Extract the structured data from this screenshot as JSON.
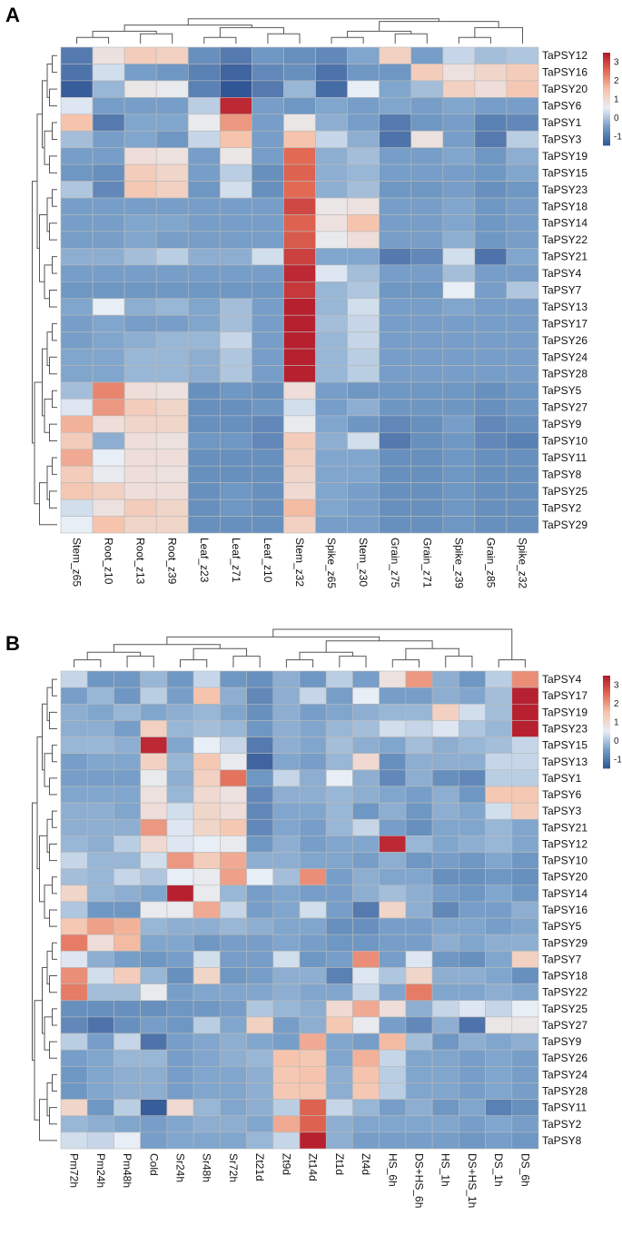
{
  "chart_data": [
    {
      "type": "heatmap",
      "panel": "A",
      "colorbar_ticks": [
        3,
        2,
        1,
        0,
        -1
      ],
      "colorbar_range": [
        -1.5,
        3.5
      ],
      "columns": [
        "Stem_z65",
        "Root_z10",
        "Root_z13",
        "Root_z39",
        "Leaf_z23",
        "Leaf_z71",
        "Leaf_z10",
        "Stem_z32",
        "Spike_z65",
        "Stem_z30",
        "Grain_z75",
        "Grain_z71",
        "Spike_z39",
        "Grain_z85",
        "Spike_z32"
      ],
      "rows": [
        "TaPSY12",
        "TaPSY16",
        "TaPSY20",
        "TaPSY6",
        "TaPSY1",
        "TaPSY3",
        "TaPSY19",
        "TaPSY15",
        "TaPSY23",
        "TaPSY18",
        "TaPSY14",
        "TaPSY22",
        "TaPSY21",
        "TaPSY4",
        "TaPSY7",
        "TaPSY13",
        "TaPSY17",
        "TaPSY26",
        "TaPSY24",
        "TaPSY28",
        "TaPSY5",
        "TaPSY27",
        "TaPSY9",
        "TaPSY10",
        "TaPSY11",
        "TaPSY8",
        "TaPSY25",
        "TaPSY2",
        "TaPSY29"
      ],
      "values": [
        [
          -1.0,
          0.8,
          1.3,
          1.2,
          -0.7,
          -1.0,
          -0.6,
          -0.7,
          -0.8,
          -0.4,
          1.2,
          -0.5,
          0.2,
          -0.1,
          0.0
        ],
        [
          -1.1,
          0.3,
          -0.5,
          -0.6,
          -0.9,
          -1.3,
          -0.8,
          -0.7,
          -1.1,
          -0.6,
          -0.6,
          1.3,
          0.8,
          1.1,
          1.3
        ],
        [
          -1.4,
          -0.2,
          0.7,
          0.6,
          -0.9,
          -1.5,
          -1.0,
          -0.2,
          -1.2,
          0.5,
          -0.4,
          -0.1,
          1.2,
          0.9,
          1.4
        ],
        [
          0.4,
          -0.5,
          -0.5,
          -0.5,
          0.1,
          3.3,
          -0.5,
          -0.6,
          -0.4,
          -0.5,
          -0.4,
          -0.5,
          -0.4,
          -0.5,
          -0.5
        ],
        [
          1.5,
          -1.0,
          -0.4,
          -0.4,
          0.6,
          2.0,
          -0.5,
          0.7,
          -0.3,
          -0.5,
          -1.0,
          -0.6,
          -0.5,
          -0.9,
          -0.8
        ],
        [
          -0.1,
          -0.5,
          -0.4,
          -0.6,
          0.2,
          1.5,
          -0.5,
          1.5,
          0.2,
          -0.3,
          -1.1,
          0.8,
          -0.5,
          -1.0,
          0.1
        ],
        [
          -0.5,
          -0.5,
          0.9,
          0.8,
          -0.5,
          0.7,
          -0.5,
          2.5,
          -0.3,
          -0.1,
          -0.5,
          -0.5,
          -0.4,
          -0.6,
          -0.3
        ],
        [
          -0.6,
          -0.7,
          1.3,
          1.1,
          -0.5,
          0.1,
          -0.7,
          2.6,
          -0.3,
          -0.2,
          -0.5,
          -0.5,
          -0.5,
          -0.6,
          -0.4
        ],
        [
          0.0,
          -0.8,
          1.4,
          1.2,
          -0.6,
          0.3,
          -0.7,
          2.5,
          -0.3,
          -0.1,
          -0.6,
          -0.6,
          -0.5,
          -0.7,
          -0.6
        ],
        [
          -0.5,
          -0.5,
          -0.5,
          -0.5,
          -0.5,
          -0.5,
          -0.5,
          2.9,
          0.7,
          0.8,
          -0.5,
          -0.5,
          -0.4,
          -0.6,
          -0.5
        ],
        [
          -0.5,
          -0.5,
          -0.4,
          -0.4,
          -0.5,
          -0.5,
          -0.5,
          2.6,
          0.8,
          1.5,
          -0.5,
          -0.5,
          -0.4,
          -0.6,
          -0.5
        ],
        [
          -0.5,
          -0.5,
          -0.4,
          -0.5,
          -0.5,
          -0.5,
          -0.5,
          2.7,
          0.6,
          0.9,
          -0.5,
          -0.5,
          -0.3,
          -0.6,
          -0.5
        ],
        [
          -0.3,
          -0.3,
          -0.1,
          0.1,
          -0.3,
          -0.3,
          0.3,
          3.0,
          -0.4,
          -0.4,
          -1.0,
          -0.8,
          0.3,
          -1.1,
          -0.4
        ],
        [
          -0.5,
          -0.5,
          -0.5,
          -0.5,
          -0.5,
          -0.5,
          -0.5,
          3.3,
          0.4,
          -0.1,
          -0.5,
          -0.5,
          -0.1,
          -0.5,
          -0.5
        ],
        [
          -0.6,
          -0.6,
          -0.6,
          -0.6,
          -0.6,
          -0.6,
          -0.6,
          3.1,
          -0.2,
          0.0,
          -0.6,
          -0.6,
          0.5,
          -0.5,
          0.0
        ],
        [
          -0.4,
          0.5,
          -0.3,
          -0.2,
          -0.4,
          -0.1,
          -0.5,
          3.4,
          -0.2,
          0.3,
          -0.5,
          -0.5,
          -0.4,
          -0.5,
          -0.5
        ],
        [
          -0.5,
          -0.4,
          -0.5,
          -0.5,
          -0.4,
          -0.1,
          -0.5,
          3.4,
          -0.1,
          0.2,
          -0.5,
          -0.5,
          -0.5,
          -0.5,
          -0.5
        ],
        [
          -0.5,
          -0.4,
          -0.3,
          -0.2,
          -0.2,
          0.2,
          -0.5,
          3.4,
          -0.2,
          0.2,
          -0.5,
          -0.5,
          -0.5,
          -0.5,
          -0.5
        ],
        [
          -0.4,
          -0.4,
          -0.2,
          -0.2,
          -0.3,
          0.0,
          -0.5,
          3.4,
          -0.2,
          0.1,
          -0.5,
          -0.5,
          -0.5,
          -0.5,
          -0.5
        ],
        [
          -0.4,
          -0.4,
          -0.2,
          -0.2,
          -0.3,
          0.0,
          -0.5,
          3.4,
          -0.2,
          0.1,
          -0.5,
          -0.5,
          -0.5,
          -0.5,
          -0.5
        ],
        [
          -0.1,
          2.2,
          0.9,
          0.8,
          -0.7,
          -0.6,
          -0.7,
          0.9,
          -0.5,
          -0.6,
          -0.6,
          -0.6,
          -0.6,
          -0.7,
          -0.6
        ],
        [
          0.4,
          2.0,
          1.3,
          1.1,
          -0.7,
          -0.7,
          -0.6,
          0.3,
          -0.5,
          -0.3,
          -0.6,
          -0.6,
          -0.6,
          -0.7,
          -0.6
        ],
        [
          1.7,
          0.9,
          1.1,
          1.1,
          -0.7,
          -0.7,
          -0.8,
          0.6,
          -0.4,
          -0.6,
          -0.8,
          -0.7,
          -0.5,
          -0.8,
          -0.7
        ],
        [
          1.3,
          -0.3,
          0.9,
          0.8,
          -0.6,
          -0.6,
          -0.8,
          1.3,
          -0.3,
          0.3,
          -1.0,
          -0.7,
          -0.6,
          -0.8,
          -0.9
        ],
        [
          1.8,
          0.5,
          0.9,
          0.9,
          -0.7,
          -0.7,
          -0.7,
          1.2,
          -0.4,
          -0.4,
          -0.7,
          -0.7,
          -0.6,
          -0.7,
          -0.7
        ],
        [
          1.3,
          0.6,
          0.9,
          0.8,
          -0.7,
          -0.7,
          -0.7,
          1.1,
          -0.4,
          -0.4,
          -0.7,
          -0.7,
          -0.6,
          -0.7,
          -0.7
        ],
        [
          1.4,
          1.2,
          0.9,
          0.9,
          -0.7,
          -0.6,
          -0.7,
          1.0,
          -0.4,
          -0.5,
          -0.7,
          -0.7,
          -0.6,
          -0.7,
          -0.7
        ],
        [
          0.3,
          0.8,
          1.3,
          1.1,
          -0.7,
          -0.6,
          -0.7,
          1.6,
          -0.4,
          -0.5,
          -0.7,
          -0.7,
          -0.6,
          -0.7,
          -0.7
        ],
        [
          0.5,
          1.5,
          1.1,
          1.1,
          -0.7,
          -0.7,
          -0.7,
          1.2,
          -0.5,
          -0.5,
          -0.7,
          -0.7,
          -0.6,
          -0.7,
          -0.7
        ]
      ]
    },
    {
      "type": "heatmap",
      "panel": "B",
      "colorbar_ticks": [
        3,
        2,
        1,
        0,
        -1
      ],
      "colorbar_range": [
        -1.5,
        3.5
      ],
      "columns": [
        "Pm72h",
        "Pm24h",
        "Pm48h",
        "Cold",
        "Sr24h",
        "Sr48h",
        "Sr72h",
        "Zt21d",
        "Zt9d",
        "Zt14d",
        "Zt1d",
        "Zt4d",
        "HS_6h",
        "DS+HS_6h",
        "HS_1h",
        "DS+HS_1h",
        "DS_1h",
        "DS_6h"
      ],
      "rows": [
        "TaPSY4",
        "TaPSY17",
        "TaPSY19",
        "TaPSY23",
        "TaPSY15",
        "TaPSY13",
        "TaPSY1",
        "TaPSY6",
        "TaPSY3",
        "TaPSY21",
        "TaPSY12",
        "TaPSY10",
        "TaPSY20",
        "TaPSY14",
        "TaPSY16",
        "TaPSY5",
        "TaPSY29",
        "TaPSY7",
        "TaPSY18",
        "TaPSY22",
        "TaPSY25",
        "TaPSY27",
        "TaPSY9",
        "TaPSY26",
        "TaPSY24",
        "TaPSY28",
        "TaPSY11",
        "TaPSY2",
        "TaPSY8"
      ],
      "values": [
        [
          0.2,
          -0.6,
          -0.6,
          -0.2,
          -0.6,
          0.2,
          -0.6,
          -0.7,
          -0.3,
          -0.6,
          0.1,
          -0.5,
          0.8,
          2.0,
          -0.3,
          -0.6,
          0.1,
          2.1
        ],
        [
          -0.5,
          -0.2,
          -0.6,
          0.1,
          -0.5,
          1.5,
          -0.3,
          -0.8,
          -0.3,
          0.2,
          -0.5,
          0.5,
          -0.5,
          -0.5,
          -0.3,
          -0.4,
          -0.1,
          3.4
        ],
        [
          -0.3,
          -0.4,
          -0.2,
          -0.4,
          -0.3,
          -0.2,
          -0.4,
          -0.7,
          -0.3,
          -0.5,
          -0.4,
          -0.3,
          -0.2,
          -0.2,
          1.2,
          0.3,
          -0.1,
          3.4
        ],
        [
          -0.3,
          -0.3,
          -0.5,
          1.2,
          -0.2,
          -0.1,
          -0.2,
          -0.6,
          -0.3,
          -0.4,
          -0.2,
          -0.1,
          0.3,
          0.2,
          0.4,
          0.0,
          -0.2,
          3.4
        ],
        [
          -0.2,
          -0.2,
          -0.3,
          3.3,
          -0.4,
          0.5,
          0.2,
          -1.0,
          -0.3,
          -0.4,
          -0.1,
          -0.3,
          -0.4,
          -0.1,
          -0.3,
          -0.2,
          -0.1,
          0.2
        ],
        [
          -0.5,
          -0.4,
          -0.4,
          1.2,
          -0.2,
          1.4,
          0.6,
          -1.3,
          -0.4,
          -0.5,
          -0.2,
          1.0,
          -0.7,
          -0.3,
          -0.3,
          -0.3,
          0.2,
          0.2
        ],
        [
          -0.5,
          -0.5,
          -0.5,
          0.6,
          -0.3,
          1.2,
          2.4,
          -0.6,
          0.2,
          -0.3,
          0.5,
          -0.3,
          -0.8,
          -0.3,
          -0.7,
          -0.8,
          0.1,
          0.1
        ],
        [
          -0.4,
          -0.4,
          -0.4,
          0.8,
          -0.2,
          1.0,
          0.8,
          -0.8,
          -0.3,
          -0.3,
          -0.2,
          -0.3,
          -0.4,
          -0.5,
          -0.3,
          -0.6,
          1.4,
          1.4
        ],
        [
          -0.3,
          -0.3,
          -0.4,
          0.9,
          0.3,
          1.1,
          0.9,
          -0.8,
          -0.4,
          -0.4,
          -0.2,
          -0.6,
          -0.3,
          -0.6,
          -0.3,
          -0.4,
          0.3,
          1.3
        ],
        [
          -0.3,
          -0.3,
          -0.3,
          2.0,
          0.4,
          1.1,
          1.4,
          -0.8,
          -0.4,
          -0.5,
          -0.2,
          0.2,
          -0.5,
          -0.7,
          -0.4,
          -0.4,
          -0.2,
          -0.4
        ],
        [
          -0.2,
          -0.3,
          0.1,
          1.0,
          0.4,
          0.5,
          0.6,
          -0.6,
          -0.3,
          -0.5,
          -0.4,
          -0.4,
          3.3,
          -0.2,
          -0.4,
          -0.3,
          -0.2,
          -0.4
        ],
        [
          0.2,
          -0.2,
          -0.2,
          0.3,
          2.0,
          1.3,
          1.8,
          -0.3,
          -0.3,
          -0.4,
          -0.4,
          -0.5,
          -0.3,
          -0.6,
          -0.5,
          -0.6,
          -0.4,
          -0.6
        ],
        [
          -0.1,
          -0.2,
          0.2,
          0.0,
          0.5,
          0.6,
          1.9,
          0.5,
          -0.1,
          2.1,
          -0.5,
          -0.3,
          -0.4,
          -0.4,
          -0.7,
          -0.7,
          -0.6,
          -0.7
        ],
        [
          1.1,
          -0.2,
          -0.3,
          -0.4,
          3.4,
          0.6,
          -0.2,
          -0.5,
          -0.4,
          -0.5,
          -0.5,
          -0.3,
          -0.1,
          -0.3,
          -0.5,
          -0.6,
          -0.4,
          -0.6
        ],
        [
          0.0,
          -0.6,
          -0.6,
          0.6,
          0.6,
          1.8,
          0.2,
          -0.5,
          -0.4,
          0.3,
          -0.5,
          -1.0,
          1.1,
          -0.3,
          -0.8,
          -0.5,
          -0.5,
          -0.3
        ],
        [
          1.4,
          1.9,
          1.7,
          -0.2,
          -0.3,
          -0.3,
          -0.2,
          -0.3,
          -0.4,
          -0.4,
          -0.7,
          -0.7,
          -0.5,
          -0.5,
          -0.4,
          -0.4,
          -0.5,
          -0.4
        ],
        [
          2.3,
          0.9,
          1.6,
          -0.4,
          -0.4,
          -0.6,
          -0.5,
          -0.5,
          -0.4,
          -0.5,
          -0.6,
          -0.6,
          -0.5,
          -0.5,
          -0.3,
          -0.4,
          -0.3,
          -0.3
        ],
        [
          0.4,
          -0.3,
          -0.5,
          -0.6,
          -0.5,
          0.3,
          -0.5,
          -0.5,
          0.3,
          -0.6,
          -0.5,
          2.1,
          -0.5,
          0.4,
          -0.6,
          -0.7,
          -0.4,
          1.2
        ],
        [
          2.1,
          0.3,
          1.3,
          -0.2,
          -0.7,
          1.1,
          -0.6,
          -0.5,
          -0.3,
          -0.3,
          -0.9,
          0.4,
          0.0,
          1.1,
          -0.3,
          -0.3,
          -0.4,
          -0.7
        ],
        [
          2.3,
          -0.1,
          -0.1,
          0.6,
          -0.5,
          -0.4,
          -0.4,
          -0.4,
          -0.3,
          -0.4,
          -0.4,
          0.2,
          -0.4,
          2.3,
          -0.4,
          -0.4,
          -0.3,
          -0.4
        ],
        [
          -0.7,
          -0.7,
          -0.7,
          -0.7,
          -0.6,
          -0.6,
          -0.5,
          0.0,
          -0.2,
          -0.3,
          1.0,
          1.8,
          0.9,
          -0.3,
          0.2,
          0.4,
          0.2,
          0.5
        ],
        [
          -0.8,
          -1.1,
          -0.7,
          -0.5,
          -0.6,
          0.1,
          -0.4,
          1.2,
          -0.5,
          -0.3,
          1.4,
          0.6,
          -0.5,
          -0.8,
          -0.3,
          -1.1,
          0.7,
          0.7
        ],
        [
          0.1,
          -0.5,
          0.2,
          -1.1,
          -0.5,
          -0.4,
          -0.3,
          -0.4,
          -0.5,
          1.8,
          -0.4,
          -0.5,
          1.6,
          -0.1,
          -0.6,
          -0.3,
          -0.4,
          -0.3
        ],
        [
          -0.5,
          -0.4,
          -0.2,
          -0.2,
          -0.5,
          -0.4,
          -0.3,
          -0.2,
          1.5,
          1.4,
          -0.4,
          1.7,
          0.2,
          -0.4,
          -0.4,
          -0.5,
          -0.4,
          -0.5
        ],
        [
          -0.6,
          -0.4,
          -0.3,
          -0.3,
          -0.5,
          -0.4,
          -0.4,
          -0.3,
          1.4,
          1.5,
          -0.3,
          1.5,
          0.1,
          -0.4,
          -0.4,
          -0.5,
          -0.4,
          -0.5
        ],
        [
          -0.6,
          -0.4,
          -0.3,
          -0.3,
          -0.5,
          -0.4,
          -0.4,
          -0.3,
          1.4,
          1.4,
          -0.3,
          1.4,
          0.1,
          -0.4,
          -0.4,
          -0.5,
          -0.4,
          -0.5
        ],
        [
          1.1,
          -0.6,
          0.1,
          -1.4,
          1.0,
          -0.2,
          -0.4,
          -0.3,
          0.1,
          2.6,
          0.2,
          -0.2,
          -0.5,
          -0.3,
          -0.6,
          -0.4,
          -0.9,
          -0.7
        ],
        [
          -0.2,
          -0.3,
          -0.4,
          -0.5,
          -0.4,
          -0.3,
          -0.3,
          -0.4,
          1.8,
          2.6,
          -0.3,
          -0.4,
          -0.4,
          -0.4,
          -0.4,
          -0.5,
          -0.4,
          -0.5
        ],
        [
          0.3,
          0.2,
          0.5,
          -0.5,
          -0.4,
          -0.4,
          -0.4,
          -0.2,
          0.2,
          3.4,
          -0.3,
          -0.5,
          -0.5,
          -0.5,
          -0.5,
          -0.6,
          -0.5,
          -0.6
        ]
      ]
    }
  ]
}
